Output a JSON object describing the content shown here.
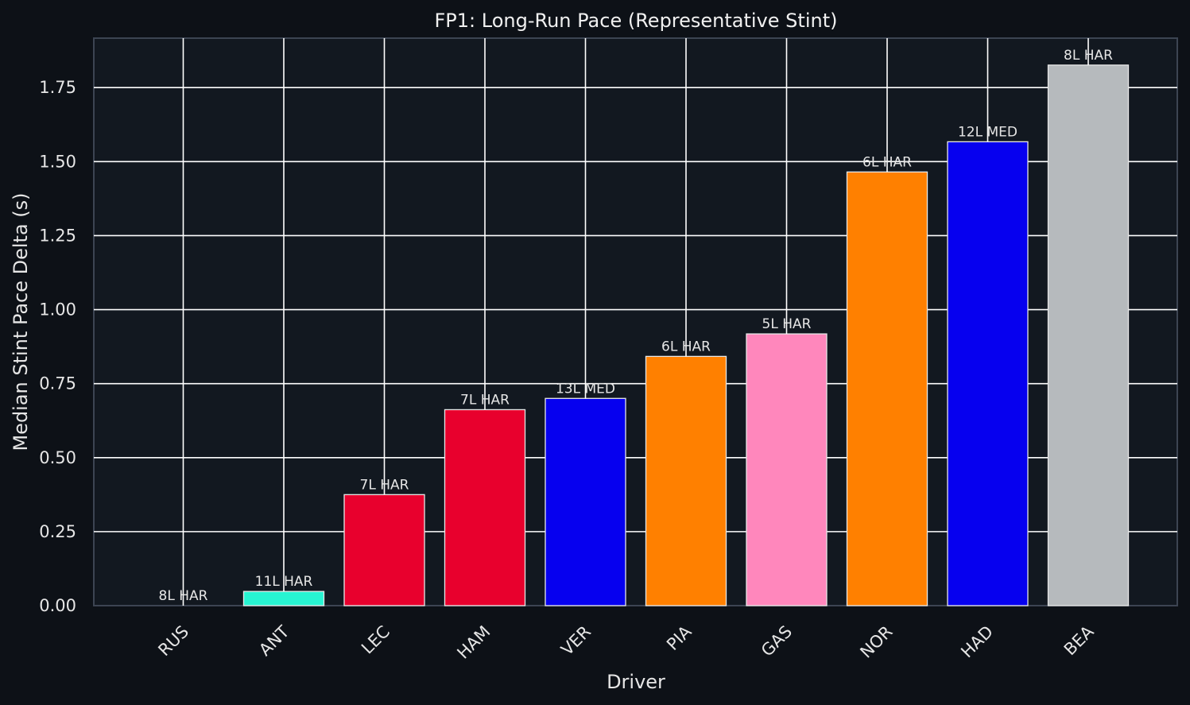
{
  "chart_data": {
    "type": "bar",
    "title": "FP1: Long-Run Pace (Representative Stint)",
    "xlabel": "Driver",
    "ylabel": "Median Stint Pace Delta (s)",
    "ylim": [
      0,
      1.917
    ],
    "yticks": [
      "0.00",
      "0.25",
      "0.50",
      "0.75",
      "1.00",
      "1.25",
      "1.50",
      "1.75"
    ],
    "grid": true,
    "categories": [
      "RUS",
      "ANT",
      "LEC",
      "HAM",
      "VER",
      "PIA",
      "GAS",
      "NOR",
      "HAD",
      "BEA"
    ],
    "values": [
      0.0,
      0.048,
      0.375,
      0.662,
      0.7,
      0.842,
      0.918,
      1.465,
      1.567,
      1.826
    ],
    "bar_labels": [
      "8L HAR",
      "11L HAR",
      "7L HAR",
      "7L HAR",
      "13L MED",
      "6L HAR",
      "5L HAR",
      "6L HAR",
      "12L MED",
      "8L HAR"
    ],
    "colors": [
      "#27f4d2",
      "#27f4d2",
      "#e8002d",
      "#e8002d",
      "#0600ef",
      "#ff8000",
      "#ff87bc",
      "#ff8000",
      "#0600ef",
      "#b6babd"
    ]
  }
}
